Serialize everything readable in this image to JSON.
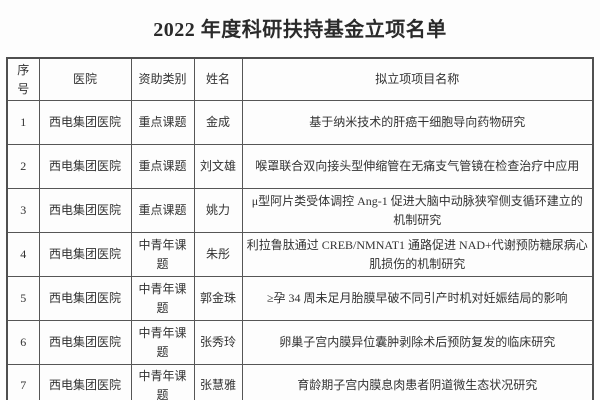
{
  "title": "2022 年度科研扶持基金立项名单",
  "table": {
    "headers": [
      "序号",
      "医院",
      "资助类别",
      "姓名",
      "拟立项项目名称"
    ],
    "rows": [
      [
        "1",
        "西电集团医院",
        "重点课题",
        "金成",
        "基于纳米技术的肝癌干细胞导向药物研究"
      ],
      [
        "2",
        "西电集团医院",
        "重点课题",
        "刘文雄",
        "喉罩联合双向接头型伸缩管在无痛支气管镜在检查治疗中应用"
      ],
      [
        "3",
        "西电集团医院",
        "重点课题",
        "姚力",
        "μ型阿片类受体调控 Ang-1 促进大脑中动脉狭窄侧支循环建立的机制研究"
      ],
      [
        "4",
        "西电集团医院",
        "中青年课题",
        "朱彤",
        "利拉鲁肽通过 CREB/NMNAT1 通路促进 NAD+代谢预防糖尿病心肌损伤的机制研究"
      ],
      [
        "5",
        "西电集团医院",
        "中青年课题",
        "郭金珠",
        "≥孕 34 周未足月胎膜早破不同引产时机对妊娠结局的影响"
      ],
      [
        "6",
        "西电集团医院",
        "中青年课题",
        "张秀玲",
        "卵巢子宫内膜异位囊肿剥除术后预防复发的临床研究"
      ],
      [
        "7",
        "西电集团医院",
        "中青年课题",
        "张慧雅",
        "育龄期子宫内膜息肉患者阴道微生态状况研究"
      ]
    ]
  },
  "colors": {
    "border": "#565656",
    "text": "#323232",
    "background": "#ffffff"
  }
}
